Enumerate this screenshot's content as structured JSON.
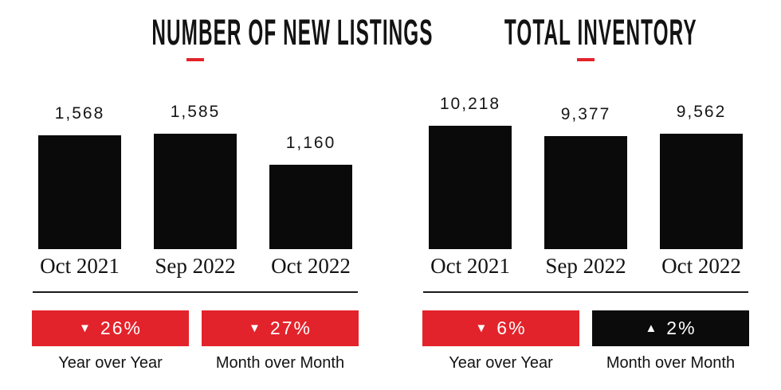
{
  "style": {
    "brand_red": "#e3232b",
    "bar_color": "#0a0a0a",
    "badge_black": "#0b0b0b",
    "badge_text_color": "#ffffff",
    "text_color": "#141414",
    "background": "#ffffff"
  },
  "chart_data": [
    {
      "type": "bar",
      "title": "NUMBER OF NEW LISTINGS",
      "categories": [
        "Oct 2021",
        "Sep 2022",
        "Oct 2022"
      ],
      "values": [
        1568,
        1585,
        1160
      ],
      "data_labels": [
        "1,568",
        "1,585",
        "1,160"
      ],
      "ylim": [
        0,
        1585
      ],
      "grid": false,
      "legend": "none",
      "bar_color": "#0a0a0a",
      "annotations": [
        {
          "label": "Year over Year",
          "value": "26%",
          "direction": "down",
          "icon": "triangle-down-icon",
          "bg": "#e3232b",
          "fg": "#ffffff"
        },
        {
          "label": "Month over Month",
          "value": "27%",
          "direction": "down",
          "icon": "triangle-down-icon",
          "bg": "#e3232b",
          "fg": "#ffffff"
        }
      ]
    },
    {
      "type": "bar",
      "title": "TOTAL INVENTORY",
      "categories": [
        "Oct 2021",
        "Sep 2022",
        "Oct 2022"
      ],
      "values": [
        10218,
        9377,
        9562
      ],
      "data_labels": [
        "10,218",
        "9,377",
        "9,562"
      ],
      "ylim": [
        0,
        10218
      ],
      "grid": false,
      "legend": "none",
      "bar_color": "#0a0a0a",
      "annotations": [
        {
          "label": "Year over Year",
          "value": "6%",
          "direction": "down",
          "icon": "triangle-down-icon",
          "bg": "#e3232b",
          "fg": "#ffffff"
        },
        {
          "label": "Month over Month",
          "value": "2%",
          "direction": "up",
          "icon": "triangle-up-icon",
          "bg": "#0b0b0b",
          "fg": "#ffffff"
        }
      ]
    }
  ]
}
